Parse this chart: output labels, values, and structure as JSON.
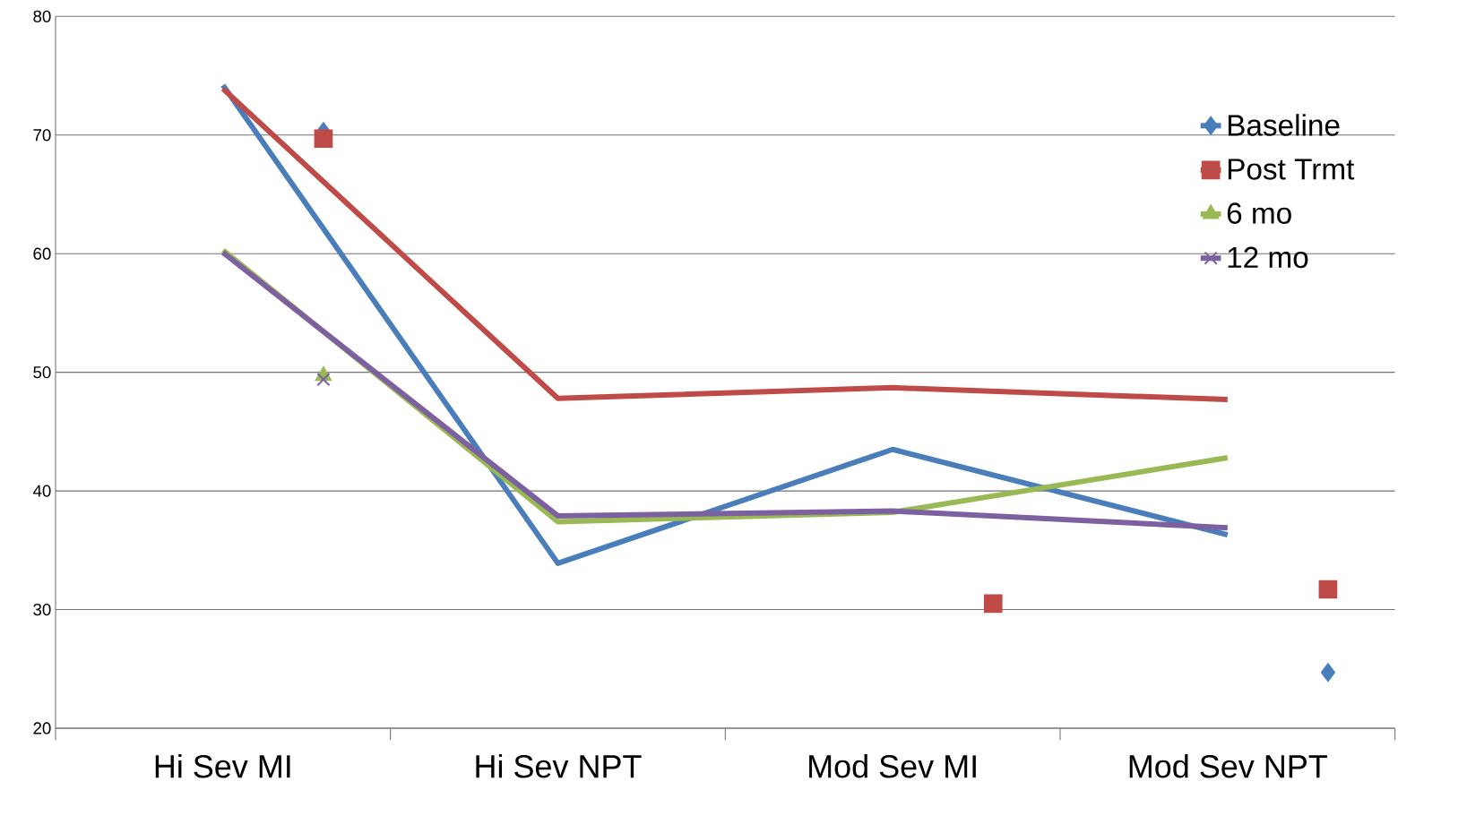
{
  "chart_data": {
    "type": "line",
    "categories": [
      "Hi Sev MI",
      "Hi Sev NPT",
      "Mod Sev MI",
      "Mod Sev NPT"
    ],
    "ylim": [
      20,
      80
    ],
    "yticks": [
      20,
      30,
      40,
      50,
      60,
      70,
      80
    ],
    "grid": "y",
    "legend": "top right",
    "series": [
      {
        "name": "Baseline",
        "color": "#4a7ebb",
        "marker": "none",
        "values": [
          74.2,
          33.9,
          43.5,
          36.3
        ]
      },
      {
        "name": "Post Trmt",
        "color": "#be4b48",
        "marker": "none",
        "values": [
          73.9,
          47.8,
          48.7,
          47.7
        ]
      },
      {
        "name": "6 mo",
        "color": "#98b954",
        "marker": "none",
        "values": [
          60.3,
          37.4,
          38.2,
          42.8
        ]
      },
      {
        "name": "12 mo",
        "color": "#7d60a0",
        "marker": "none",
        "values": [
          60.1,
          37.9,
          38.3,
          36.9
        ]
      },
      {
        "type": "scatter",
        "color": "#4a7ebb",
        "marker": "diamond",
        "values": [
          70.3,
          null,
          null,
          24.7
        ]
      },
      {
        "type": "scatter",
        "color": "#be4b48",
        "marker": "square",
        "values": [
          69.7,
          null,
          30.5,
          31.7
        ]
      },
      {
        "type": "scatter",
        "color": "#98b954",
        "marker": "triangle",
        "values": [
          49.7,
          null,
          null,
          null
        ]
      },
      {
        "type": "scatter",
        "color": "#7d60a0",
        "marker": "cross",
        "values": [
          49.4,
          null,
          null,
          null
        ]
      }
    ]
  }
}
